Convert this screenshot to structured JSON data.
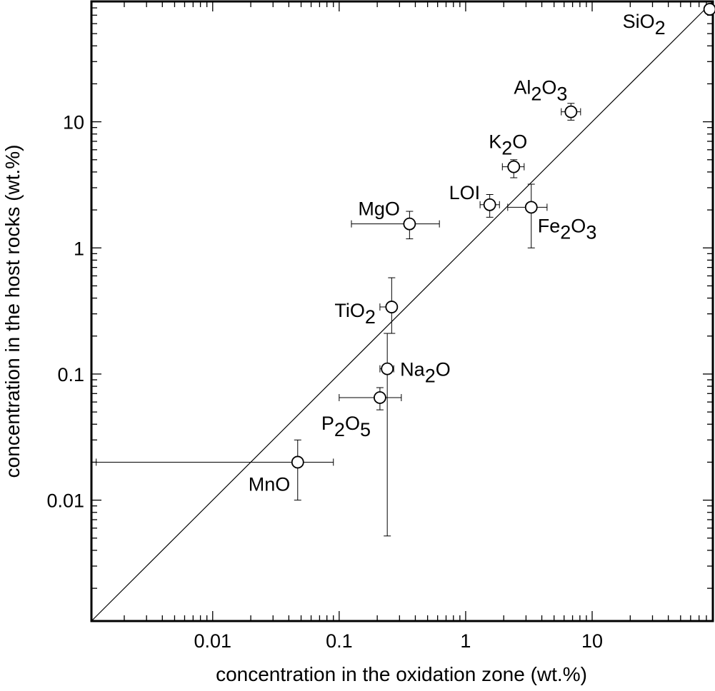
{
  "chart_data": {
    "type": "scatter",
    "title": "",
    "xlabel": "concentration in the oxidation zone (wt.%)",
    "ylabel": "concentration in the host rocks (wt.%)",
    "xscale": "log",
    "yscale": "log",
    "xlim": [
      0.0011,
      90
    ],
    "ylim": [
      0.0011,
      90
    ],
    "grid": false,
    "legend": "none",
    "x_ticks": [
      {
        "value": 0.01,
        "label": "0.01"
      },
      {
        "value": 0.1,
        "label": "0.1"
      },
      {
        "value": 1,
        "label": "1"
      },
      {
        "value": 10,
        "label": "10"
      }
    ],
    "y_ticks": [
      {
        "value": 0.01,
        "label": "0.01"
      },
      {
        "value": 0.1,
        "label": "0.1"
      },
      {
        "value": 1,
        "label": "1"
      },
      {
        "value": 10,
        "label": "10"
      }
    ],
    "reference_line": {
      "type": "1:1",
      "from": [
        0.0011,
        0.0011
      ],
      "to": [
        90,
        90
      ]
    },
    "points": [
      {
        "label": "SiO",
        "sub1": "2",
        "x": 85,
        "y": 78
      },
      {
        "label": "Al",
        "sub1": "2",
        "mid": "O",
        "sub2": "3",
        "x": 6.8,
        "y": 12,
        "xerr": [
          5.7,
          8.1
        ],
        "yerr": [
          10.3,
          14
        ]
      },
      {
        "label": "K",
        "sub1": "2",
        "mid": "O",
        "x": 2.4,
        "y": 4.4,
        "xerr": [
          1.95,
          2.9
        ],
        "yerr": [
          3.6,
          5.0
        ]
      },
      {
        "label": "LOI",
        "x": 1.55,
        "y": 2.2,
        "xerr": [
          1.3,
          1.85
        ],
        "yerr": [
          1.75,
          2.65
        ]
      },
      {
        "label": "Fe",
        "sub1": "2",
        "mid": "O",
        "sub2": "3",
        "x": 3.3,
        "y": 2.1,
        "xerr": [
          2.15,
          4.4
        ],
        "yerr": [
          1.0,
          3.2
        ]
      },
      {
        "label": "MgO",
        "x": 0.36,
        "y": 1.55,
        "xerr": [
          0.125,
          0.62
        ],
        "yerr": [
          1.18,
          1.95
        ]
      },
      {
        "label": "TiO",
        "sub1": "2",
        "x": 0.26,
        "y": 0.34,
        "xerr": [
          0.21,
          0.27
        ],
        "yerr": [
          0.21,
          0.58
        ]
      },
      {
        "label": "Na",
        "sub1": "2",
        "mid": "O",
        "x": 0.24,
        "y": 0.11,
        "xerr": [
          0.21,
          0.27
        ],
        "yerr": [
          0.0052,
          0.21
        ]
      },
      {
        "label": "P",
        "sub1": "2",
        "mid": "O",
        "sub2": "5",
        "x": 0.21,
        "y": 0.065,
        "xerr": [
          0.1,
          0.31
        ],
        "yerr": [
          0.052,
          0.078
        ]
      },
      {
        "label": "MnO",
        "x": 0.047,
        "y": 0.02,
        "xerr": [
          0.0012,
          0.09
        ],
        "yerr": [
          0.01,
          0.03
        ]
      }
    ]
  }
}
